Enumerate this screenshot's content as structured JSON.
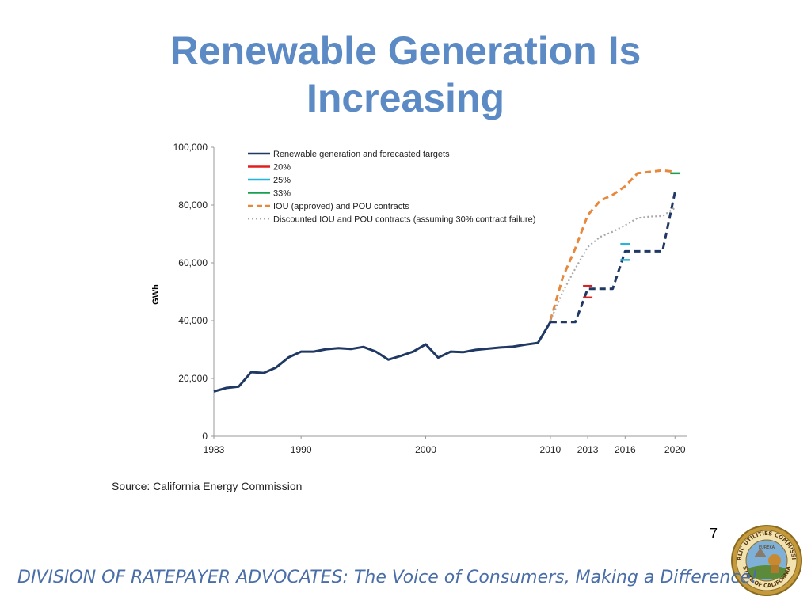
{
  "slide": {
    "title_line1": "Renewable Generation Is",
    "title_line2": "Increasing",
    "source": "Source: California Energy Commission",
    "page_number": "7",
    "footer": "DIVISION OF RATEPAYER ADVOCATES: The Voice of Consumers, Making a Difference!",
    "seal_text_top": "PUBLIC UTILITIES COMMISSION",
    "seal_text_bottom": "STATE OF CALIFORNIA",
    "seal_motto": "EUREKA"
  },
  "colors": {
    "title": "#5b8ac5",
    "footer": "#4a6ea8",
    "renewable": "#1f3864",
    "target_20": "#e02020",
    "target_25": "#20b4e0",
    "target_33": "#18a050",
    "iou": "#e8883c",
    "discounted": "#a8a8a8"
  },
  "chart_data": {
    "type": "line",
    "ylabel": "GWh",
    "xlabel": "",
    "ylim": [
      0,
      100000
    ],
    "xlim": [
      1983,
      2021
    ],
    "y_ticks": [
      0,
      20000,
      40000,
      60000,
      80000,
      100000
    ],
    "y_tick_labels": [
      "0",
      "20,000",
      "40,000",
      "60,000",
      "80,000",
      "100,000"
    ],
    "x_ticks": [
      1983,
      1990,
      2000,
      2010,
      2013,
      2016,
      2020
    ],
    "x_tick_labels": [
      "1983",
      "1990",
      "2000",
      "2010",
      "2013",
      "2016",
      "2020"
    ],
    "grid": false,
    "legend_position": "top-left",
    "series": [
      {
        "name": "Renewable generation and forecasted targets",
        "style": "solid",
        "x": [
          1983,
          1984,
          1985,
          1986,
          1987,
          1988,
          1989,
          1990,
          1991,
          1992,
          1993,
          1994,
          1995,
          1996,
          1997,
          1998,
          1999,
          2000,
          2001,
          2002,
          2003,
          2004,
          2005,
          2006,
          2007,
          2008,
          2009,
          2010
        ],
        "values": [
          15500,
          16700,
          17200,
          22200,
          21900,
          23800,
          27300,
          29300,
          29300,
          30100,
          30500,
          30200,
          30900,
          29300,
          26500,
          27800,
          29300,
          31800,
          27200,
          29300,
          29100,
          29900,
          30300,
          30700,
          31000,
          31700,
          32300,
          39500
        ]
      },
      {
        "name": "Renewable generation and forecasted targets (forecast)",
        "style": "dashed",
        "x": [
          2010,
          2012,
          2012,
          2013,
          2013,
          2015,
          2015,
          2016,
          2016,
          2019,
          2019,
          2020
        ],
        "values": [
          39500,
          39500,
          39500,
          51000,
          51000,
          51000,
          51000,
          64000,
          64000,
          64000,
          64000,
          84500
        ]
      },
      {
        "name": "20%",
        "style": "marker",
        "x": [
          2013,
          2013
        ],
        "values": [
          48000,
          52000
        ]
      },
      {
        "name": "25%",
        "style": "marker",
        "x": [
          2016,
          2016
        ],
        "values": [
          61000,
          66500
        ]
      },
      {
        "name": "33%",
        "style": "marker",
        "x": [
          2020
        ],
        "values": [
          91000
        ]
      },
      {
        "name": "IOU (approved) and POU contracts",
        "style": "dashed",
        "x": [
          2010,
          2011,
          2012,
          2013,
          2014,
          2015,
          2016,
          2017,
          2018,
          2019,
          2020
        ],
        "values": [
          40000,
          55000,
          65000,
          76500,
          81500,
          83500,
          86500,
          91000,
          91500,
          92000,
          91500
        ]
      },
      {
        "name": "Discounted IOU and POU contracts (assuming 30% contract failure)",
        "style": "dotted",
        "x": [
          2010,
          2011,
          2012,
          2013,
          2014,
          2015,
          2016,
          2017,
          2018,
          2019,
          2020
        ],
        "values": [
          40000,
          50000,
          58000,
          65500,
          69000,
          70800,
          73000,
          75500,
          76000,
          76200,
          79000
        ]
      }
    ],
    "legend": [
      "Renewable generation and forecasted targets",
      "20%",
      "25%",
      "33%",
      "IOU (approved) and POU contracts",
      "Discounted IOU and POU contracts (assuming 30% contract failure)"
    ]
  }
}
